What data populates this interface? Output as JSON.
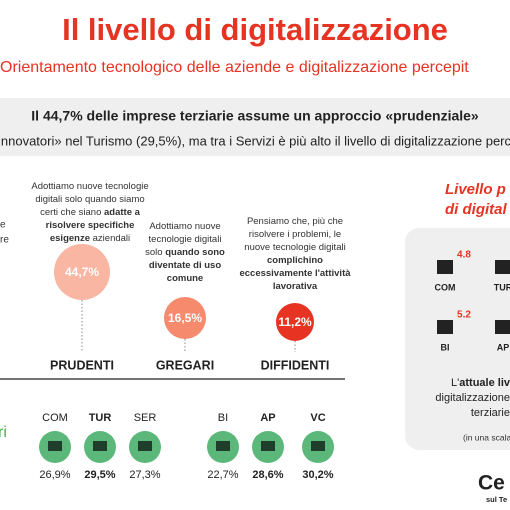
{
  "header": {
    "title": "Il livello di digitalizzazione",
    "subtitle": "Orientamento tecnologico delle aziende e digitalizzazione percepit"
  },
  "summary": {
    "line1": "Il 44,7% delle imprese terziarie assume un approccio «prudenziale»",
    "line2": "innovatori» nel Turismo (29,5%), ma tra i Servizi è più alto il livello di digitalizzazione percepit"
  },
  "left_cut": {
    "lines": [
      "e",
      "re"
    ],
    "legend": "ri"
  },
  "profiles": [
    {
      "name": "PRUDENTI",
      "share": "44,7%",
      "lines": [
        [
          {
            "text": "Adottiamo nuove tecnologie"
          }
        ],
        [
          {
            "text": "digitali solo quando siamo"
          }
        ],
        [
          {
            "text": "certi che siano "
          },
          {
            "text": "adatte a",
            "bold": true
          }
        ],
        [
          {
            "text": "risolvere specifiche",
            "bold": true
          }
        ],
        [
          {
            "text": "esigenze",
            "bold": true
          },
          {
            "text": " aziendali"
          }
        ]
      ]
    },
    {
      "name": "GREGARI",
      "share": "16,5%",
      "lines": [
        [
          {
            "text": "Adottiamo nuove"
          }
        ],
        [
          {
            "text": "tecnologie digitali"
          }
        ],
        [
          {
            "text": "solo "
          },
          {
            "text": "quando sono",
            "bold": true
          }
        ],
        [
          {
            "text": "diventate di uso",
            "bold": true
          }
        ],
        [
          {
            "text": "comune",
            "bold": true
          }
        ]
      ]
    },
    {
      "name": "DIFFIDENTI",
      "share": "11,2%",
      "lines": [
        [
          {
            "text": "Pensiamo che, più che"
          }
        ],
        [
          {
            "text": "risolvere i problemi, le"
          }
        ],
        [
          {
            "text": "nuove tecnologie digitali"
          }
        ],
        [
          {
            "text": "complichino",
            "bold": true
          }
        ],
        [
          {
            "text": "eccessivamente l'attività",
            "bold": true
          }
        ],
        [
          {
            "text": "lavorativa",
            "bold": true
          }
        ]
      ]
    }
  ],
  "sectors": [
    {
      "label": "COM",
      "share": "26,9%",
      "bold": false
    },
    {
      "label": "TUR",
      "share": "29,5%",
      "bold": true
    },
    {
      "label": "SER",
      "share": "27,3%",
      "bold": false
    },
    {
      "label": "BI",
      "share": "22,7%",
      "bold": false
    },
    {
      "label": "AP",
      "share": "28,6%",
      "bold": true
    },
    {
      "label": "VC",
      "share": "30,2%",
      "bold": true
    }
  ],
  "panel": {
    "title": [
      "Livello p",
      "di digital"
    ],
    "items": [
      {
        "label": "COM",
        "score": "4.8"
      },
      {
        "label": "TUR"
      },
      {
        "label": "BI",
        "score": "5.2"
      },
      {
        "label": "AP"
      }
    ],
    "note": [
      [
        {
          "text": "L'"
        },
        {
          "text": "attuale liv",
          "bold": true
        }
      ],
      [
        {
          "text": "digitalizzazione"
        }
      ],
      [
        {
          "text": "terziarie"
        }
      ]
    ],
    "scale": "(in una scala"
  },
  "logo": {
    "name": "Ce",
    "tagline": "sul Te"
  }
}
